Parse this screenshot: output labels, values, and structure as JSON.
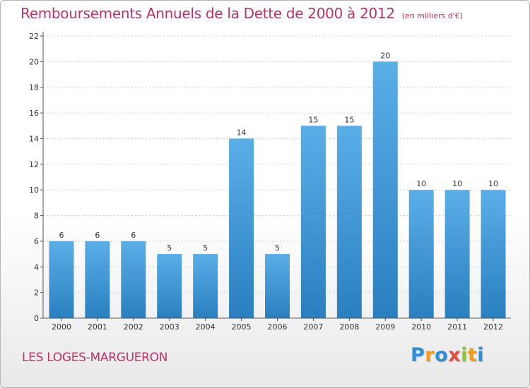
{
  "title": "Remboursements Annuels de la Dette de 2000 à 2012",
  "subtitle": "(en milliers d'€)",
  "commune": "LES LOGES-MARGUERON",
  "logo": {
    "text": "Proxiti",
    "letters": [
      {
        "ch": "P",
        "color": "#2a8fd6"
      },
      {
        "ch": "r",
        "color": "#f39c12"
      },
      {
        "ch": "o",
        "color": "#2a8fd6"
      },
      {
        "ch": "x",
        "color": "#e74c3c"
      },
      {
        "ch": "i",
        "color": "#8cc63f"
      },
      {
        "ch": "t",
        "color": "#f39c12"
      },
      {
        "ch": "i",
        "color": "#2a8fd6"
      }
    ]
  },
  "colors": {
    "accent": "#c0306a",
    "bar_light": "#5aaee8",
    "bar_dark": "#2a7fc0",
    "grid": "#cfcfcf",
    "axis": "#555555"
  },
  "chart_data": {
    "type": "bar",
    "categories": [
      "2000",
      "2001",
      "2002",
      "2003",
      "2004",
      "2005",
      "2006",
      "2007",
      "2008",
      "2009",
      "2010",
      "2011",
      "2012"
    ],
    "values": [
      6,
      6,
      6,
      5,
      5,
      14,
      5,
      15,
      15,
      20,
      10,
      10,
      10
    ],
    "data_labels": [
      "6",
      "6",
      "6",
      "5",
      "5",
      "14",
      "5",
      "15",
      "15",
      "20",
      "10",
      "10",
      "10"
    ],
    "ylim": [
      0,
      22
    ],
    "yticks": [
      0,
      2,
      4,
      6,
      8,
      10,
      12,
      14,
      16,
      18,
      20,
      22
    ],
    "ytick_labels": [
      "0",
      "2",
      "4",
      "6",
      "8",
      "10",
      "12",
      "14",
      "16",
      "18",
      "20",
      "22"
    ],
    "grid": true
  }
}
